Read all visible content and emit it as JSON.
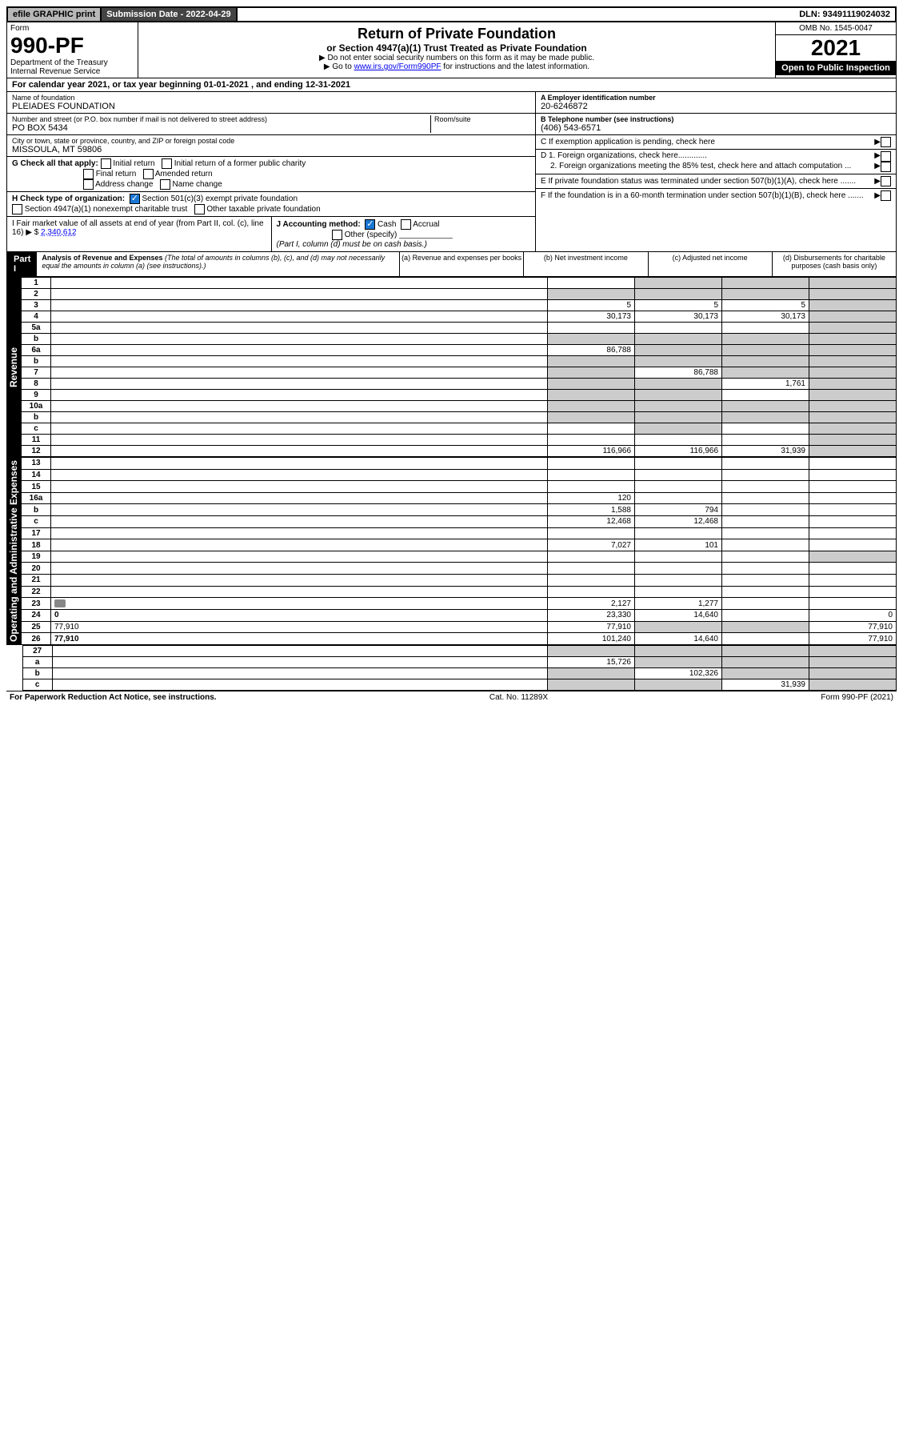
{
  "top": {
    "efile": "efile GRAPHIC print",
    "submission_label": "Submission Date - 2022-04-29",
    "dln": "DLN: 93491119024032"
  },
  "header": {
    "form_label": "Form",
    "form_no": "990-PF",
    "dept1": "Department of the Treasury",
    "dept2": "Internal Revenue Service",
    "title": "Return of Private Foundation",
    "subtitle": "or Section 4947(a)(1) Trust Treated as Private Foundation",
    "note1": "▶ Do not enter social security numbers on this form as it may be made public.",
    "note2_pre": "▶ Go to ",
    "note2_link": "www.irs.gov/Form990PF",
    "note2_post": " for instructions and the latest information.",
    "omb": "OMB No. 1545-0047",
    "year": "2021",
    "open": "Open to Public Inspection"
  },
  "calendar": {
    "text_pre": "For calendar year 2021, or tax year beginning ",
    "begin": "01-01-2021",
    "text_mid": " , and ending ",
    "end": "12-31-2021"
  },
  "entity": {
    "name_lbl": "Name of foundation",
    "name": "PLEIADES FOUNDATION",
    "addr_lbl": "Number and street (or P.O. box number if mail is not delivered to street address)",
    "addr": "PO BOX 5434",
    "room_lbl": "Room/suite",
    "room": "",
    "city_lbl": "City or town, state or province, country, and ZIP or foreign postal code",
    "city": "MISSOULA, MT  59806",
    "ein_lbl": "A Employer identification number",
    "ein": "20-6246872",
    "phone_lbl": "B Telephone number (see instructions)",
    "phone": "(406) 543-6571",
    "c_lbl": "C If exemption application is pending, check here",
    "d1_lbl": "D 1. Foreign organizations, check here.............",
    "d2_lbl": "2. Foreign organizations meeting the 85% test, check here and attach computation ...",
    "e_lbl": "E If private foundation status was terminated under section 507(b)(1)(A), check here .......",
    "f_lbl": "F If the foundation is in a 60-month termination under section 507(b)(1)(B), check here .......",
    "g_lbl": "G Check all that apply:",
    "g_opts": [
      "Initial return",
      "Initial return of a former public charity",
      "Final return",
      "Amended return",
      "Address change",
      "Name change"
    ],
    "h_lbl": "H Check type of organization:",
    "h_opt1": "Section 501(c)(3) exempt private foundation",
    "h_opt2": "Section 4947(a)(1) nonexempt charitable trust",
    "h_opt3": "Other taxable private foundation",
    "i_lbl": "I Fair market value of all assets at end of year (from Part II, col. (c), line 16) ▶ $",
    "i_val": "2,340,612",
    "j_lbl": "J Accounting method:",
    "j_opts": [
      "Cash",
      "Accrual",
      "Other (specify)"
    ],
    "j_note": "(Part I, column (d) must be on cash basis.)"
  },
  "part1": {
    "label": "Part I",
    "title": "Analysis of Revenue and Expenses",
    "title_note": " (The total of amounts in columns (b), (c), and (d) may not necessarily equal the amounts in column (a) (see instructions).)",
    "col_a": "(a) Revenue and expenses per books",
    "col_b": "(b) Net investment income",
    "col_c": "(c) Adjusted net income",
    "col_d": "(d) Disbursements for charitable purposes (cash basis only)",
    "rev_label": "Revenue",
    "exp_label": "Operating and Administrative Expenses"
  },
  "rows": [
    {
      "n": "1",
      "d": "",
      "a": "",
      "b": "",
      "c": "",
      "sb": true,
      "sc": true,
      "sd": true
    },
    {
      "n": "2",
      "d": "",
      "a": "",
      "b": "",
      "c": "",
      "sa": true,
      "sb": true,
      "sc": true,
      "sd": true
    },
    {
      "n": "3",
      "d": "",
      "a": "5",
      "b": "5",
      "c": "5",
      "sd": true
    },
    {
      "n": "4",
      "d": "",
      "a": "30,173",
      "b": "30,173",
      "c": "30,173",
      "sd": true
    },
    {
      "n": "5a",
      "d": "",
      "a": "",
      "b": "",
      "c": "",
      "sd": true
    },
    {
      "n": "b",
      "d": "",
      "a": "",
      "b": "",
      "c": "",
      "sa": true,
      "sb": true,
      "sc": true,
      "sd": true
    },
    {
      "n": "6a",
      "d": "",
      "a": "86,788",
      "b": "",
      "c": "",
      "sb": true,
      "sc": true,
      "sd": true
    },
    {
      "n": "b",
      "d": "",
      "a": "",
      "b": "",
      "c": "",
      "sa": true,
      "sb": true,
      "sc": true,
      "sd": true
    },
    {
      "n": "7",
      "d": "",
      "a": "",
      "b": "86,788",
      "c": "",
      "sa": true,
      "sc": true,
      "sd": true
    },
    {
      "n": "8",
      "d": "",
      "a": "",
      "b": "",
      "c": "1,761",
      "sa": true,
      "sb": true,
      "sd": true
    },
    {
      "n": "9",
      "d": "",
      "a": "",
      "b": "",
      "c": "",
      "sa": true,
      "sb": true,
      "sd": true
    },
    {
      "n": "10a",
      "d": "",
      "a": "",
      "b": "",
      "c": "",
      "sa": true,
      "sb": true,
      "sc": true,
      "sd": true
    },
    {
      "n": "b",
      "d": "",
      "a": "",
      "b": "",
      "c": "",
      "sa": true,
      "sb": true,
      "sc": true,
      "sd": true
    },
    {
      "n": "c",
      "d": "",
      "a": "",
      "b": "",
      "c": "",
      "sb": true,
      "sd": true
    },
    {
      "n": "11",
      "d": "",
      "a": "",
      "b": "",
      "c": "",
      "sd": true
    },
    {
      "n": "12",
      "d": "",
      "a": "116,966",
      "b": "116,966",
      "c": "31,939",
      "bold": true,
      "sd": true
    }
  ],
  "exp_rows": [
    {
      "n": "13",
      "d": "",
      "a": "",
      "b": "",
      "c": ""
    },
    {
      "n": "14",
      "d": "",
      "a": "",
      "b": "",
      "c": ""
    },
    {
      "n": "15",
      "d": "",
      "a": "",
      "b": "",
      "c": ""
    },
    {
      "n": "16a",
      "d": "",
      "a": "120",
      "b": "",
      "c": ""
    },
    {
      "n": "b",
      "d": "",
      "a": "1,588",
      "b": "794",
      "c": ""
    },
    {
      "n": "c",
      "d": "",
      "a": "12,468",
      "b": "12,468",
      "c": ""
    },
    {
      "n": "17",
      "d": "",
      "a": "",
      "b": "",
      "c": ""
    },
    {
      "n": "18",
      "d": "",
      "a": "7,027",
      "b": "101",
      "c": ""
    },
    {
      "n": "19",
      "d": "",
      "a": "",
      "b": "",
      "c": "",
      "sd": true
    },
    {
      "n": "20",
      "d": "",
      "a": "",
      "b": "",
      "c": ""
    },
    {
      "n": "21",
      "d": "",
      "a": "",
      "b": "",
      "c": ""
    },
    {
      "n": "22",
      "d": "",
      "a": "",
      "b": "",
      "c": ""
    },
    {
      "n": "23",
      "d": "",
      "a": "2,127",
      "b": "1,277",
      "c": "",
      "icon": true
    },
    {
      "n": "24",
      "d": "0",
      "a": "23,330",
      "b": "14,640",
      "c": "",
      "bold": true
    },
    {
      "n": "25",
      "d": "77,910",
      "a": "77,910",
      "b": "",
      "c": "",
      "sb": true,
      "sc": true
    },
    {
      "n": "26",
      "d": "77,910",
      "a": "101,240",
      "b": "14,640",
      "c": "",
      "bold": true
    }
  ],
  "net_rows": [
    {
      "n": "27",
      "d": "",
      "a": "",
      "b": "",
      "c": "",
      "sa": true,
      "sb": true,
      "sc": true,
      "sd": true
    },
    {
      "n": "a",
      "d": "",
      "a": "15,726",
      "b": "",
      "c": "",
      "bold": true,
      "sb": true,
      "sc": true,
      "sd": true
    },
    {
      "n": "b",
      "d": "",
      "a": "",
      "b": "102,326",
      "c": "",
      "bold": true,
      "sa": true,
      "sc": true,
      "sd": true
    },
    {
      "n": "c",
      "d": "",
      "a": "",
      "b": "",
      "c": "31,939",
      "bold": true,
      "sa": true,
      "sb": true,
      "sd": true
    }
  ],
  "footer": {
    "left": "For Paperwork Reduction Act Notice, see instructions.",
    "mid": "Cat. No. 11289X",
    "right": "Form 990-PF (2021)"
  }
}
